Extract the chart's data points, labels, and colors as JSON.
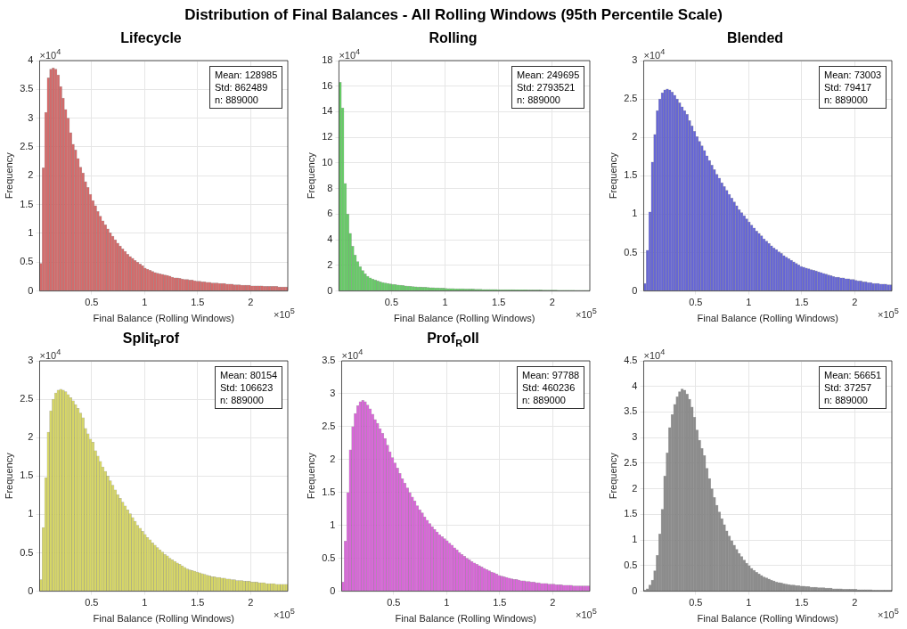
{
  "chart_data": [
    {
      "type": "other",
      "title": "Distribution of Final Balances - All Rolling Windows (95th Percentile Scale)"
    },
    {
      "type": "histogram",
      "title": "Lifecycle",
      "xlabel": "Final Balance (Rolling Windows)",
      "ylabel": "Frequency",
      "color": "#d46a6a",
      "grid": true,
      "annotations": [
        "Mean: 128985",
        "Std: 862489",
        "n: 889000",
        "×10$^{4}$",
        "×10$^{5}$"
      ],
      "xlim": [
        0.01,
        2.35
      ],
      "xticks": [
        0.5,
        1,
        1.5,
        2
      ],
      "ylim": [
        0,
        4
      ],
      "yticks": [
        0,
        0.5,
        1,
        1.5,
        2,
        2.5,
        3,
        3.5,
        4
      ],
      "bins": [
        0.01,
        0.0334,
        0.0568,
        0.0802,
        0.1036,
        0.127,
        0.1504,
        0.1738,
        0.1972,
        0.2206,
        0.244,
        0.2674,
        0.2908,
        0.3142,
        0.3376,
        0.361,
        0.3844,
        0.4078,
        0.4312,
        0.4546,
        0.478,
        0.5014,
        0.5248,
        0.5482,
        0.5716,
        0.595,
        0.6184,
        0.6418,
        0.6652,
        0.6886,
        0.712,
        0.7354,
        0.7588,
        0.7822,
        0.8056,
        0.829,
        0.8524,
        0.8758,
        0.8992,
        0.9226,
        0.946,
        0.9694,
        0.9928,
        1.0162,
        1.0396,
        1.063,
        1.0864,
        1.1098,
        1.1332,
        1.1566,
        1.18,
        1.2034,
        1.2268,
        1.2502,
        1.2736,
        1.297,
        1.3204,
        1.3438,
        1.3672,
        1.3906,
        1.414,
        1.4374,
        1.4608,
        1.4842,
        1.5076,
        1.531,
        1.5544,
        1.5778,
        1.6012,
        1.6246,
        1.648,
        1.6714,
        1.6948,
        1.7182,
        1.7416,
        1.765,
        1.7884,
        1.8118,
        1.8352,
        1.8586,
        1.882,
        1.9054,
        1.9288,
        1.9522,
        1.9756,
        1.999,
        2.0224,
        2.0458,
        2.0692,
        2.0926,
        2.116,
        2.1394,
        2.1628,
        2.1862,
        2.2096,
        2.233,
        2.2564,
        2.2798,
        2.3032,
        2.3266,
        2.35
      ],
      "values": [
        0.48,
        2.14,
        3.1,
        3.7,
        3.85,
        3.87,
        3.85,
        3.75,
        3.55,
        3.35,
        3.15,
        3.0,
        2.75,
        2.55,
        2.45,
        2.3,
        2.15,
        2.05,
        1.9,
        1.8,
        1.68,
        1.57,
        1.48,
        1.38,
        1.3,
        1.22,
        1.15,
        1.08,
        1.01,
        0.95,
        0.89,
        0.83,
        0.78,
        0.73,
        0.69,
        0.64,
        0.6,
        0.57,
        0.53,
        0.5,
        0.47,
        0.44,
        0.4,
        0.38,
        0.36,
        0.34,
        0.32,
        0.31,
        0.3,
        0.29,
        0.28,
        0.27,
        0.26,
        0.24,
        0.23,
        0.23,
        0.22,
        0.21,
        0.2,
        0.2,
        0.19,
        0.19,
        0.18,
        0.17,
        0.17,
        0.16,
        0.16,
        0.15,
        0.15,
        0.14,
        0.14,
        0.14,
        0.13,
        0.13,
        0.13,
        0.12,
        0.12,
        0.12,
        0.11,
        0.11,
        0.11,
        0.1,
        0.1,
        0.1,
        0.1,
        0.09,
        0.09,
        0.09,
        0.09,
        0.09,
        0.08,
        0.08,
        0.08,
        0.08,
        0.08,
        0.08,
        0.07,
        0.07,
        0.07,
        0.07
      ]
    },
    {
      "type": "histogram",
      "title": "Rolling",
      "xlabel": "Final Balance (Rolling Windows)",
      "ylabel": "Frequency",
      "color": "#66cc66",
      "grid": true,
      "annotations": [
        "Mean: 249695",
        "Std: 2793521",
        "n: 889000",
        "×10$^{4}$",
        "×10$^{5}$"
      ],
      "xlim": [
        0.01,
        2.35
      ],
      "xticks": [
        0.5,
        1,
        1.5,
        2
      ],
      "ylim": [
        0,
        18
      ],
      "yticks": [
        0,
        2,
        4,
        6,
        8,
        10,
        12,
        14,
        16,
        18
      ],
      "bins": [
        0.01,
        0.0334,
        0.0568,
        0.0802,
        0.1036,
        0.127,
        0.1504,
        0.1738,
        0.1972,
        0.2206,
        0.244,
        0.2674,
        0.2908,
        0.3142,
        0.3376,
        0.361,
        0.3844,
        0.4078,
        0.4312,
        0.4546,
        0.478,
        0.5014,
        0.5248,
        0.5482,
        0.5716,
        0.595,
        0.6184,
        0.6418,
        0.6652,
        0.6886,
        0.712,
        0.7354,
        0.7588,
        0.7822,
        0.8056,
        0.829,
        0.8524,
        0.8758,
        0.8992,
        0.9226,
        0.946,
        0.9694,
        0.9928,
        1.0162,
        1.0396,
        1.063,
        1.0864,
        1.1098,
        1.1332,
        1.1566,
        1.18,
        1.2034,
        1.2268,
        1.2502,
        1.2736,
        1.297,
        1.3204,
        1.3438,
        1.3672,
        1.3906,
        1.414,
        1.4374,
        1.4608,
        1.4842,
        1.5076,
        1.531,
        1.5544,
        1.5778,
        1.6012,
        1.6246,
        1.648,
        1.6714,
        1.6948,
        1.7182,
        1.7416,
        1.765,
        1.7884,
        1.8118,
        1.8352,
        1.8586,
        1.882,
        1.9054,
        1.9288,
        1.9522,
        1.9756,
        1.999,
        2.0224,
        2.0458,
        2.0692,
        2.0926,
        2.116,
        2.1394,
        2.1628,
        2.1862,
        2.2096,
        2.233,
        2.2564,
        2.2798,
        2.3032,
        2.3266,
        2.35
      ],
      "values": [
        16.3,
        14.3,
        8.4,
        6.0,
        4.5,
        3.5,
        2.8,
        2.3,
        1.9,
        1.6,
        1.35,
        1.15,
        1.03,
        0.93,
        0.85,
        0.78,
        0.72,
        0.67,
        0.63,
        0.59,
        0.56,
        0.53,
        0.5,
        0.47,
        0.45,
        0.43,
        0.41,
        0.39,
        0.37,
        0.35,
        0.34,
        0.32,
        0.31,
        0.3,
        0.29,
        0.28,
        0.27,
        0.26,
        0.25,
        0.24,
        0.23,
        0.22,
        0.21,
        0.2,
        0.2,
        0.19,
        0.18,
        0.18,
        0.17,
        0.17,
        0.16,
        0.16,
        0.15,
        0.15,
        0.14,
        0.14,
        0.14,
        0.13,
        0.13,
        0.13,
        0.12,
        0.12,
        0.12,
        0.11,
        0.11,
        0.11,
        0.1,
        0.1,
        0.1,
        0.1,
        0.09,
        0.09,
        0.09,
        0.09,
        0.09,
        0.08,
        0.08,
        0.08,
        0.08,
        0.08,
        0.08,
        0.07,
        0.07,
        0.07,
        0.07,
        0.07,
        0.07,
        0.06,
        0.06,
        0.06,
        0.06,
        0.06,
        0.06,
        0.06,
        0.05,
        0.05,
        0.05,
        0.05,
        0.05,
        0.05
      ]
    },
    {
      "type": "histogram",
      "title": "Blended",
      "xlabel": "Final Balance (Rolling Windows)",
      "ylabel": "Frequency",
      "color": "#6666d6",
      "grid": true,
      "annotations": [
        "Mean: 73003",
        "Std: 79417",
        "n: 889000",
        "×10$^{4}$",
        "×10$^{5}$"
      ],
      "xlim": [
        0.01,
        2.35
      ],
      "xticks": [
        0.5,
        1,
        1.5,
        2
      ],
      "ylim": [
        0,
        3
      ],
      "yticks": [
        0,
        0.5,
        1,
        1.5,
        2,
        2.5,
        3
      ],
      "bins": [
        0.01,
        0.0334,
        0.0568,
        0.0802,
        0.1036,
        0.127,
        0.1504,
        0.1738,
        0.1972,
        0.2206,
        0.244,
        0.2674,
        0.2908,
        0.3142,
        0.3376,
        0.361,
        0.3844,
        0.4078,
        0.4312,
        0.4546,
        0.478,
        0.5014,
        0.5248,
        0.5482,
        0.5716,
        0.595,
        0.6184,
        0.6418,
        0.6652,
        0.6886,
        0.712,
        0.7354,
        0.7588,
        0.7822,
        0.8056,
        0.829,
        0.8524,
        0.8758,
        0.8992,
        0.9226,
        0.946,
        0.9694,
        0.9928,
        1.0162,
        1.0396,
        1.063,
        1.0864,
        1.1098,
        1.1332,
        1.1566,
        1.18,
        1.2034,
        1.2268,
        1.2502,
        1.2736,
        1.297,
        1.3204,
        1.3438,
        1.3672,
        1.3906,
        1.414,
        1.4374,
        1.4608,
        1.4842,
        1.5076,
        1.531,
        1.5544,
        1.5778,
        1.6012,
        1.6246,
        1.648,
        1.6714,
        1.6948,
        1.7182,
        1.7416,
        1.765,
        1.7884,
        1.8118,
        1.8352,
        1.8586,
        1.882,
        1.9054,
        1.9288,
        1.9522,
        1.9756,
        1.999,
        2.0224,
        2.0458,
        2.0692,
        2.0926,
        2.116,
        2.1394,
        2.1628,
        2.1862,
        2.2096,
        2.233,
        2.2564,
        2.2798,
        2.3032,
        2.3266,
        2.35
      ],
      "values": [
        0.1,
        0.53,
        1.03,
        1.68,
        2.04,
        2.35,
        2.5,
        2.58,
        2.62,
        2.63,
        2.62,
        2.59,
        2.55,
        2.5,
        2.45,
        2.4,
        2.35,
        2.3,
        2.22,
        2.15,
        2.08,
        2.01,
        1.95,
        1.89,
        1.83,
        1.76,
        1.7,
        1.64,
        1.58,
        1.52,
        1.47,
        1.41,
        1.36,
        1.31,
        1.26,
        1.21,
        1.16,
        1.11,
        1.06,
        1.02,
        0.98,
        0.94,
        0.9,
        0.86,
        0.82,
        0.78,
        0.75,
        0.72,
        0.68,
        0.65,
        0.62,
        0.59,
        0.56,
        0.54,
        0.51,
        0.49,
        0.46,
        0.44,
        0.42,
        0.4,
        0.38,
        0.36,
        0.34,
        0.32,
        0.31,
        0.3,
        0.29,
        0.28,
        0.27,
        0.26,
        0.25,
        0.24,
        0.23,
        0.22,
        0.21,
        0.2,
        0.19,
        0.18,
        0.18,
        0.17,
        0.17,
        0.16,
        0.16,
        0.15,
        0.15,
        0.14,
        0.13,
        0.13,
        0.12,
        0.12,
        0.11,
        0.11,
        0.1,
        0.1,
        0.1,
        0.09,
        0.09,
        0.09,
        0.08,
        0.08
      ]
    },
    {
      "type": "histogram",
      "title": "Split$_{P}$rof",
      "xlabel": "Final Balance (Rolling Windows)",
      "ylabel": "Frequency",
      "color": "#d6d666",
      "grid": true,
      "annotations": [
        "Mean: 80154",
        "Std: 106623",
        "n: 889000",
        "×10$^{4}$",
        "×10$^{5}$"
      ],
      "xlim": [
        0.01,
        2.35
      ],
      "xticks": [
        0.5,
        1,
        1.5,
        2
      ],
      "ylim": [
        0,
        3
      ],
      "yticks": [
        0,
        0.5,
        1,
        1.5,
        2,
        2.5,
        3
      ],
      "bins": [
        0.01,
        0.0334,
        0.0568,
        0.0802,
        0.1036,
        0.127,
        0.1504,
        0.1738,
        0.1972,
        0.2206,
        0.244,
        0.2674,
        0.2908,
        0.3142,
        0.3376,
        0.361,
        0.3844,
        0.4078,
        0.4312,
        0.4546,
        0.478,
        0.5014,
        0.5248,
        0.5482,
        0.5716,
        0.595,
        0.6184,
        0.6418,
        0.6652,
        0.6886,
        0.712,
        0.7354,
        0.7588,
        0.7822,
        0.8056,
        0.829,
        0.8524,
        0.8758,
        0.8992,
        0.9226,
        0.946,
        0.9694,
        0.9928,
        1.0162,
        1.0396,
        1.063,
        1.0864,
        1.1098,
        1.1332,
        1.1566,
        1.18,
        1.2034,
        1.2268,
        1.2502,
        1.2736,
        1.297,
        1.3204,
        1.3438,
        1.3672,
        1.3906,
        1.414,
        1.4374,
        1.4608,
        1.4842,
        1.5076,
        1.531,
        1.5544,
        1.5778,
        1.6012,
        1.6246,
        1.648,
        1.6714,
        1.6948,
        1.7182,
        1.7416,
        1.765,
        1.7884,
        1.8118,
        1.8352,
        1.8586,
        1.882,
        1.9054,
        1.9288,
        1.9522,
        1.9756,
        1.999,
        2.0224,
        2.0458,
        2.0692,
        2.0926,
        2.116,
        2.1394,
        2.1628,
        2.1862,
        2.2096,
        2.233,
        2.2564,
        2.2798,
        2.3032,
        2.3266,
        2.35
      ],
      "values": [
        0.15,
        0.83,
        1.48,
        2.07,
        2.35,
        2.5,
        2.58,
        2.62,
        2.63,
        2.62,
        2.6,
        2.56,
        2.52,
        2.48,
        2.43,
        2.38,
        2.32,
        2.26,
        2.12,
        2.05,
        1.98,
        1.94,
        1.83,
        1.76,
        1.69,
        1.62,
        1.56,
        1.5,
        1.44,
        1.38,
        1.32,
        1.26,
        1.21,
        1.16,
        1.11,
        1.06,
        1.01,
        0.96,
        0.91,
        0.86,
        0.82,
        0.78,
        0.74,
        0.7,
        0.67,
        0.63,
        0.6,
        0.57,
        0.54,
        0.51,
        0.48,
        0.46,
        0.43,
        0.41,
        0.39,
        0.37,
        0.35,
        0.33,
        0.31,
        0.29,
        0.28,
        0.27,
        0.26,
        0.25,
        0.24,
        0.23,
        0.22,
        0.21,
        0.2,
        0.19,
        0.19,
        0.18,
        0.18,
        0.17,
        0.17,
        0.16,
        0.16,
        0.15,
        0.15,
        0.14,
        0.14,
        0.14,
        0.13,
        0.13,
        0.13,
        0.12,
        0.12,
        0.12,
        0.11,
        0.11,
        0.11,
        0.1,
        0.1,
        0.1,
        0.1,
        0.09,
        0.09,
        0.09,
        0.09,
        0.09
      ]
    },
    {
      "type": "histogram",
      "title": "Prof$_{R}$oll",
      "xlabel": "Final Balance (Rolling Windows)",
      "ylabel": "Frequency",
      "color": "#d966d9",
      "grid": true,
      "annotations": [
        "Mean: 97788",
        "Std: 460236",
        "n: 889000",
        "×10$^{4}$",
        "×10$^{5}$"
      ],
      "xlim": [
        0.01,
        2.35
      ],
      "xticks": [
        0.5,
        1,
        1.5,
        2
      ],
      "ylim": [
        0,
        3.5
      ],
      "yticks": [
        0,
        0.5,
        1,
        1.5,
        2,
        2.5,
        3,
        3.5
      ],
      "bins": [
        0.01,
        0.0334,
        0.0568,
        0.0802,
        0.1036,
        0.127,
        0.1504,
        0.1738,
        0.1972,
        0.2206,
        0.244,
        0.2674,
        0.2908,
        0.3142,
        0.3376,
        0.361,
        0.3844,
        0.4078,
        0.4312,
        0.4546,
        0.478,
        0.5014,
        0.5248,
        0.5482,
        0.5716,
        0.595,
        0.6184,
        0.6418,
        0.6652,
        0.6886,
        0.712,
        0.7354,
        0.7588,
        0.7822,
        0.8056,
        0.829,
        0.8524,
        0.8758,
        0.8992,
        0.9226,
        0.946,
        0.9694,
        0.9928,
        1.0162,
        1.0396,
        1.063,
        1.0864,
        1.1098,
        1.1332,
        1.1566,
        1.18,
        1.2034,
        1.2268,
        1.2502,
        1.2736,
        1.297,
        1.3204,
        1.3438,
        1.3672,
        1.3906,
        1.414,
        1.4374,
        1.4608,
        1.4842,
        1.5076,
        1.531,
        1.5544,
        1.5778,
        1.6012,
        1.6246,
        1.648,
        1.6714,
        1.6948,
        1.7182,
        1.7416,
        1.765,
        1.7884,
        1.8118,
        1.8352,
        1.8586,
        1.882,
        1.9054,
        1.9288,
        1.9522,
        1.9756,
        1.999,
        2.0224,
        2.0458,
        2.0692,
        2.0926,
        2.116,
        2.1394,
        2.1628,
        2.1862,
        2.2096,
        2.233,
        2.2564,
        2.2798,
        2.3032,
        2.3266,
        2.35
      ],
      "values": [
        0.14,
        0.76,
        1.5,
        2.15,
        2.5,
        2.7,
        2.82,
        2.88,
        2.9,
        2.88,
        2.83,
        2.77,
        2.69,
        2.61,
        2.55,
        2.47,
        2.4,
        2.32,
        2.22,
        2.12,
        2.03,
        1.95,
        1.87,
        1.79,
        1.71,
        1.64,
        1.57,
        1.5,
        1.43,
        1.37,
        1.3,
        1.24,
        1.19,
        1.13,
        1.08,
        1.03,
        0.98,
        0.94,
        0.9,
        0.86,
        0.83,
        0.8,
        0.77,
        0.73,
        0.7,
        0.66,
        0.63,
        0.59,
        0.56,
        0.53,
        0.5,
        0.48,
        0.45,
        0.43,
        0.41,
        0.39,
        0.37,
        0.35,
        0.33,
        0.31,
        0.29,
        0.28,
        0.26,
        0.24,
        0.23,
        0.22,
        0.21,
        0.2,
        0.19,
        0.18,
        0.18,
        0.17,
        0.16,
        0.16,
        0.15,
        0.15,
        0.14,
        0.14,
        0.13,
        0.13,
        0.12,
        0.12,
        0.12,
        0.11,
        0.11,
        0.11,
        0.1,
        0.1,
        0.1,
        0.09,
        0.09,
        0.09,
        0.09,
        0.08,
        0.08,
        0.08,
        0.08,
        0.08,
        0.08,
        0.08
      ]
    },
    {
      "type": "histogram",
      "xlabel": "Final Balance (Rolling Windows)",
      "ylabel": "Frequency",
      "color": "#8c8c8c",
      "grid": true,
      "annotations": [
        "Mean: 56651",
        "Std: 37257",
        "n: 889000",
        "×10$^{4}$",
        "×10$^{5}$"
      ],
      "xlim": [
        0.01,
        2.35
      ],
      "xticks": [
        0.5,
        1,
        1.5,
        2
      ],
      "ylim": [
        0,
        4.5
      ],
      "yticks": [
        0,
        0.5,
        1,
        1.5,
        2,
        2.5,
        3,
        3.5,
        4,
        4.5
      ],
      "bins": [
        0.01,
        0.0334,
        0.0568,
        0.0802,
        0.1036,
        0.127,
        0.1504,
        0.1738,
        0.1972,
        0.2206,
        0.244,
        0.2674,
        0.2908,
        0.3142,
        0.3376,
        0.361,
        0.3844,
        0.4078,
        0.4312,
        0.4546,
        0.478,
        0.5014,
        0.5248,
        0.5482,
        0.5716,
        0.595,
        0.6184,
        0.6418,
        0.6652,
        0.6886,
        0.712,
        0.7354,
        0.7588,
        0.7822,
        0.8056,
        0.829,
        0.8524,
        0.8758,
        0.8992,
        0.9226,
        0.946,
        0.9694,
        0.9928,
        1.0162,
        1.0396,
        1.063,
        1.0864,
        1.1098,
        1.1332,
        1.1566,
        1.18,
        1.2034,
        1.2268,
        1.2502,
        1.2736,
        1.297,
        1.3204,
        1.3438,
        1.3672,
        1.3906,
        1.414,
        1.4374,
        1.4608,
        1.4842,
        1.5076,
        1.531,
        1.5544,
        1.5778,
        1.6012,
        1.6246,
        1.648,
        1.6714,
        1.6948,
        1.7182,
        1.7416,
        1.765,
        1.7884,
        1.8118,
        1.8352,
        1.8586,
        1.882,
        1.9054,
        1.9288,
        1.9522,
        1.9756,
        1.999,
        2.0224,
        2.0458,
        2.0692,
        2.0926,
        2.116,
        2.1394,
        2.1628,
        2.1862,
        2.2096,
        2.233,
        2.2564,
        2.2798,
        2.3032,
        2.3266,
        2.35
      ],
      "values": [
        0.02,
        0.05,
        0.12,
        0.22,
        0.4,
        0.7,
        1.12,
        1.6,
        2.25,
        2.7,
        3.2,
        3.45,
        3.65,
        3.8,
        3.9,
        3.95,
        3.93,
        3.85,
        3.75,
        3.6,
        3.4,
        3.15,
        2.95,
        2.79,
        2.65,
        2.4,
        2.2,
        2.0,
        1.83,
        1.68,
        1.55,
        1.42,
        1.3,
        1.18,
        1.08,
        0.99,
        0.9,
        0.82,
        0.74,
        0.68,
        0.61,
        0.55,
        0.5,
        0.45,
        0.41,
        0.37,
        0.34,
        0.31,
        0.28,
        0.26,
        0.24,
        0.22,
        0.2,
        0.18,
        0.17,
        0.16,
        0.15,
        0.14,
        0.13,
        0.12,
        0.12,
        0.11,
        0.11,
        0.1,
        0.1,
        0.09,
        0.09,
        0.08,
        0.08,
        0.08,
        0.07,
        0.07,
        0.07,
        0.06,
        0.06,
        0.06,
        0.05,
        0.05,
        0.05,
        0.05,
        0.04,
        0.04,
        0.04,
        0.04,
        0.04,
        0.04,
        0.03,
        0.03,
        0.03,
        0.03,
        0.03,
        0.03,
        0.02,
        0.02,
        0.02,
        0.02,
        0.02,
        0.02,
        0.02,
        0.02
      ]
    }
  ]
}
